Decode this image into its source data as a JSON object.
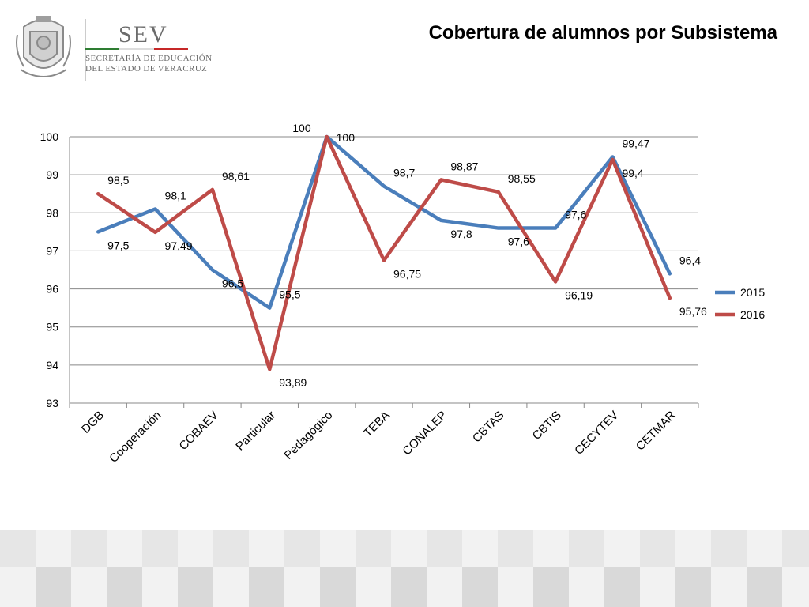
{
  "header": {
    "logo_word": "SEV",
    "logo_line1": "SECRETARÍA DE EDUCACIÓN",
    "logo_line2": "DEL ESTADO DE VERACRUZ",
    "title": "Cobertura de alumnos por Subsistema"
  },
  "colors": {
    "series_2015": "#4a7ebb",
    "series_2016": "#be4b48",
    "gridline": "#888888",
    "flag_green": "#2e7d32",
    "flag_red": "#c62828"
  },
  "chart_data": {
    "type": "line",
    "title": "",
    "xlabel": "",
    "ylabel": "",
    "ylim": [
      93,
      100
    ],
    "yticks": [
      "93",
      "94",
      "95",
      "96",
      "97",
      "98",
      "99",
      "100"
    ],
    "grid": true,
    "legend_position": "right",
    "categories": [
      "DGB",
      "Cooperación",
      "COBAEV",
      "Particular",
      "Pedagógico",
      "TEBA",
      "CONALEP",
      "CBTAS",
      "CBTIS",
      "CECYTEV",
      "CETMAR"
    ],
    "series": [
      {
        "name": "2015",
        "values": [
          97.5,
          98.1,
          96.5,
          95.5,
          100,
          98.7,
          97.8,
          97.6,
          97.6,
          99.47,
          96.4
        ],
        "labels": [
          "97,5",
          "98,1",
          "96,5",
          "95,5",
          "100",
          "98,7",
          "97,8",
          "97,6",
          "97,6",
          "99,47",
          "96,4"
        ]
      },
      {
        "name": "2016",
        "values": [
          98.5,
          97.49,
          98.61,
          93.89,
          100,
          96.75,
          98.87,
          98.55,
          96.19,
          99.4,
          95.76
        ],
        "labels": [
          "98,5",
          "97,49",
          "98,61",
          "93,89",
          "100",
          "96,75",
          "98,87",
          "98,55",
          "96,19",
          "99,4",
          "95,76"
        ]
      }
    ]
  }
}
